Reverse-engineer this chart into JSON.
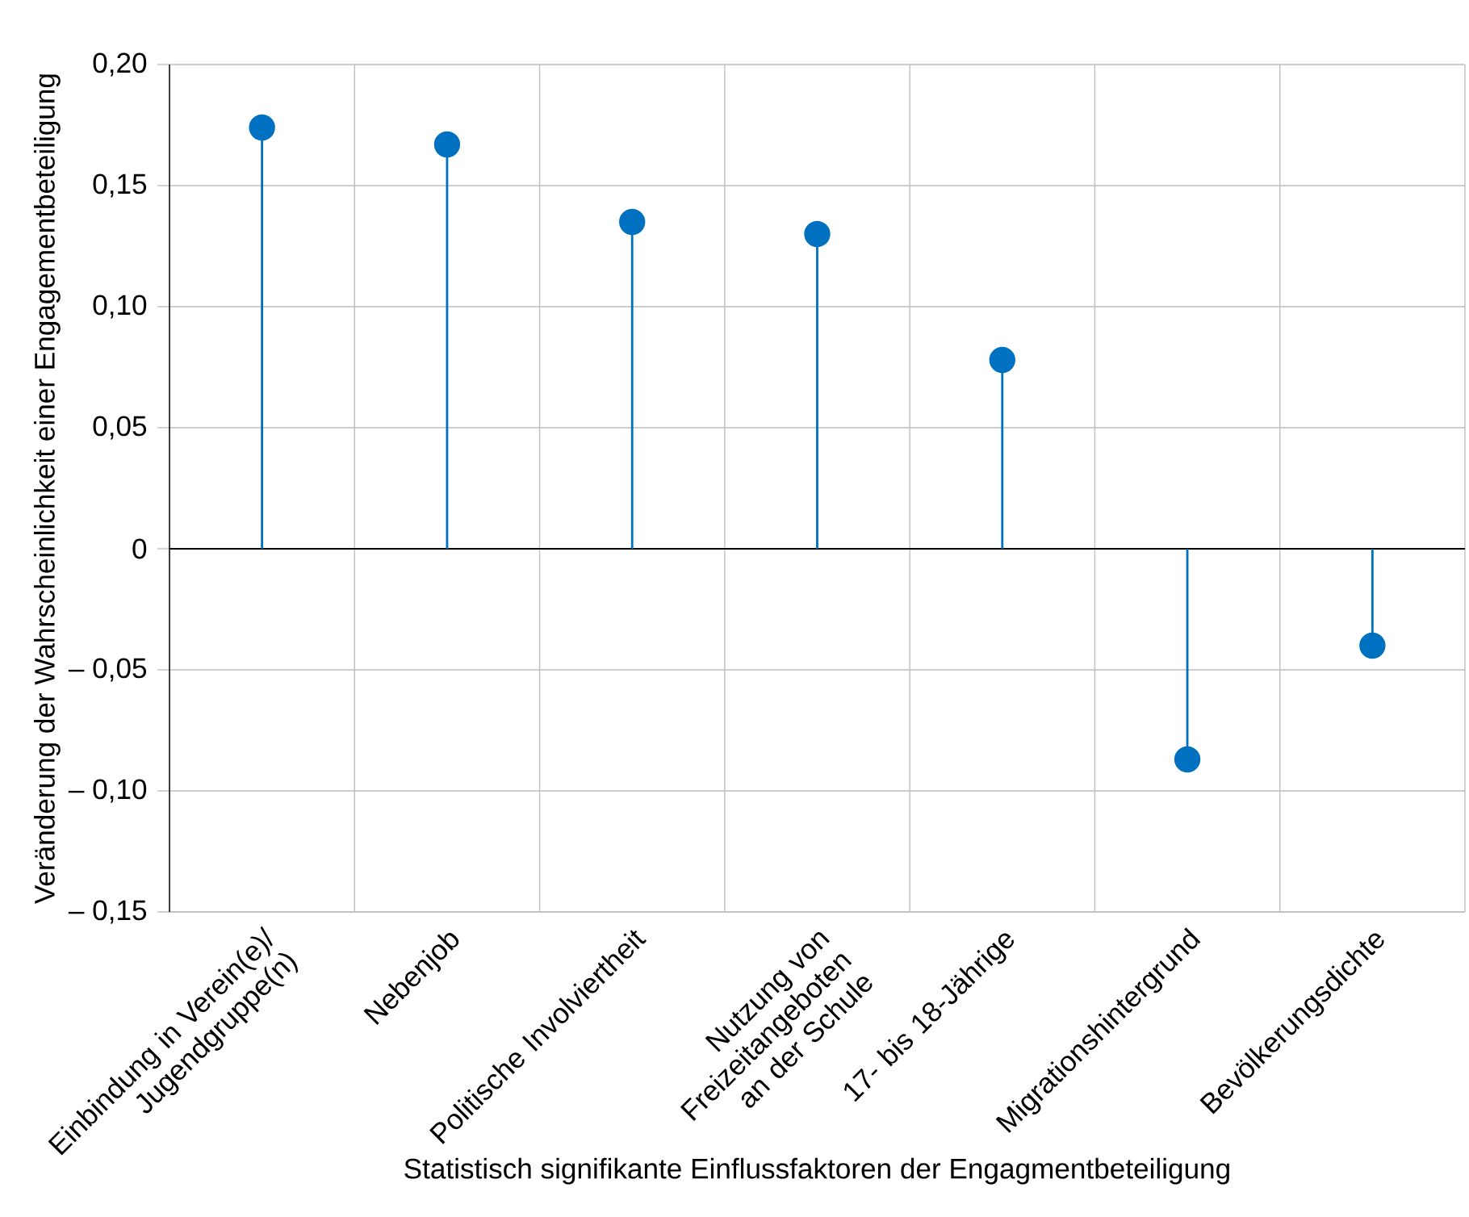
{
  "chart_data": {
    "type": "lollipop",
    "xlabel": "Statistisch signifikante Einflussfaktoren der Engagmentbeteiligung",
    "ylabel": "Veränderung der Wahrscheinlichkeit einer Engagementbeteiligung",
    "categories": [
      "Einbindung in Verein(e)/ Jugendgruppe(n)",
      "Nebenjob",
      "Politische Involviertheit",
      "Nutzung von Freizeitangeboten an der Schule",
      "17- bis 18-Jährige",
      "Migrationshintergrund",
      "Bevölkerungsdichte"
    ],
    "values": [
      0.174,
      0.167,
      0.135,
      0.13,
      0.078,
      -0.087,
      -0.04
    ],
    "color": "#0070c0",
    "marker": "circle",
    "ylim": [
      -0.15,
      0.2
    ],
    "yticks": [
      {
        "value": -0.15,
        "label": "– 0,15"
      },
      {
        "value": -0.1,
        "label": "– 0,10"
      },
      {
        "value": -0.05,
        "label": "– 0,05"
      },
      0,
      {
        "value": 0.05,
        "label": "0,05"
      },
      {
        "value": 0.1,
        "label": "0,10"
      },
      {
        "value": 0.15,
        "label": "0,15"
      },
      {
        "value": 0.2,
        "label": "0,20"
      }
    ],
    "grid": true
  }
}
